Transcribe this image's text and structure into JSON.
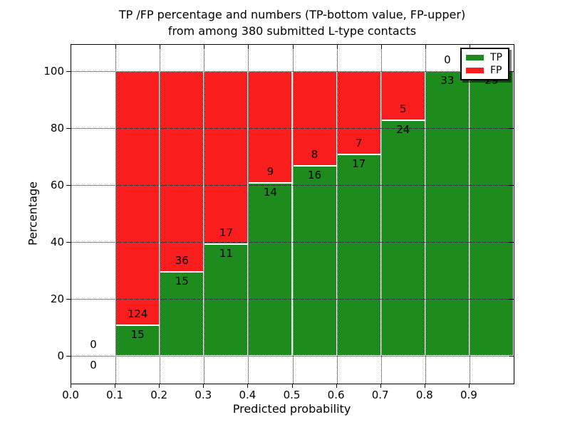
{
  "title": {
    "line1": "TP /FP percentage and numbers (TP-bottom value, FP-upper)",
    "line2": "from among 380 submitted L-type contacts"
  },
  "axes": {
    "xlabel": "Predicted probability",
    "ylabel": "Percentage",
    "x_ticks": [
      {
        "label": "0.0",
        "value": 0.0
      },
      {
        "label": "0.1",
        "value": 0.1
      },
      {
        "label": "0.2",
        "value": 0.2
      },
      {
        "label": "0.3",
        "value": 0.3
      },
      {
        "label": "0.4",
        "value": 0.4
      },
      {
        "label": "0.5",
        "value": 0.5
      },
      {
        "label": "0.6",
        "value": 0.6
      },
      {
        "label": "0.7",
        "value": 0.7
      },
      {
        "label": "0.8",
        "value": 0.8
      },
      {
        "label": "0.9",
        "value": 0.9
      }
    ],
    "y_ticks": [
      {
        "label": "0",
        "value": 0
      },
      {
        "label": "20",
        "value": 20
      },
      {
        "label": "40",
        "value": 40
      },
      {
        "label": "60",
        "value": 60
      },
      {
        "label": "80",
        "value": 80
      },
      {
        "label": "100",
        "value": 100
      }
    ]
  },
  "legend": {
    "items": [
      {
        "label": "TP",
        "color": "#1e8b1e"
      },
      {
        "label": "FP",
        "color": "#fa1d1d"
      }
    ]
  },
  "colors": {
    "tp": "#1e8b1e",
    "fp": "#fa1d1d",
    "bar_edge": "#ffffff",
    "grid": "#000000"
  },
  "chart_data": {
    "type": "bar",
    "stacked": true,
    "title": "TP /FP percentage and numbers (TP-bottom value, FP-upper) from among 380 submitted L-type contacts",
    "xlabel": "Predicted probability",
    "ylabel": "Percentage",
    "xlim": [
      0.0,
      1.0
    ],
    "ylim": [
      -10,
      110
    ],
    "grid": true,
    "legend_position": "upper right",
    "bin_width": 0.1,
    "total_contacts": 380,
    "series": [
      {
        "name": "TP",
        "color": "#1e8b1e",
        "values": [
          0,
          15,
          15,
          11,
          14,
          16,
          17,
          24,
          33,
          29
        ]
      },
      {
        "name": "FP",
        "color": "#fa1d1d",
        "values": [
          0,
          124,
          36,
          17,
          9,
          8,
          7,
          5,
          0,
          0
        ]
      }
    ],
    "bins": [
      {
        "x_start": 0.0,
        "tp_count": 0,
        "fp_count": 0,
        "tp_pct": 0.0,
        "fp_pct": 0.0
      },
      {
        "x_start": 0.1,
        "tp_count": 15,
        "fp_count": 124,
        "tp_pct": 10.79,
        "fp_pct": 89.21
      },
      {
        "x_start": 0.2,
        "tp_count": 15,
        "fp_count": 36,
        "tp_pct": 29.41,
        "fp_pct": 70.59
      },
      {
        "x_start": 0.3,
        "tp_count": 11,
        "fp_count": 17,
        "tp_pct": 39.29,
        "fp_pct": 60.71
      },
      {
        "x_start": 0.4,
        "tp_count": 14,
        "fp_count": 9,
        "tp_pct": 60.87,
        "fp_pct": 39.13
      },
      {
        "x_start": 0.5,
        "tp_count": 16,
        "fp_count": 8,
        "tp_pct": 66.67,
        "fp_pct": 33.33
      },
      {
        "x_start": 0.6,
        "tp_count": 17,
        "fp_count": 7,
        "tp_pct": 70.83,
        "fp_pct": 29.17
      },
      {
        "x_start": 0.7,
        "tp_count": 24,
        "fp_count": 5,
        "tp_pct": 82.76,
        "fp_pct": 17.24
      },
      {
        "x_start": 0.8,
        "tp_count": 33,
        "fp_count": 0,
        "tp_pct": 100.0,
        "fp_pct": 0.0
      },
      {
        "x_start": 0.9,
        "tp_count": 29,
        "fp_count": 0,
        "tp_pct": 100.0,
        "fp_pct": 0.0
      }
    ]
  }
}
